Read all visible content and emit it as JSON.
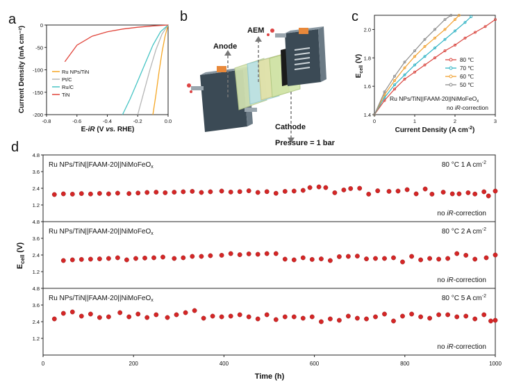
{
  "panel_letters": {
    "a": "a",
    "b": "b",
    "c": "c",
    "d": "d"
  },
  "colors": {
    "ru_tin": "#f5a623",
    "ptc": "#b5b5b5",
    "ruc": "#45c4c4",
    "tin": "#e0443a",
    "t80": "#d9453e",
    "t70": "#2fb3c4",
    "t60": "#f0a030",
    "t50": "#8c8c8c",
    "marker": "#d42626"
  },
  "schematic": {
    "anode_label": "Anode",
    "aem_label": "AEM",
    "cathode_label": "Cathode",
    "pressure_label": "Pressure = 1 bar",
    "icons": [
      "electrolyzer-end-plate-icon",
      "membrane-layers-icon",
      "flow-arrow-icon"
    ]
  },
  "chart_data": [
    {
      "id": "a",
      "type": "line",
      "xlabel": "E-iR (V vs. RHE)",
      "xlabel_parts": {
        "pre": "E-",
        "ital": "iR",
        "mid": " (V ",
        "vs.": "vs.",
        "post": " RHE)"
      },
      "ylabel": "Current Density (mA cm⁻²)",
      "xlim": [
        -0.8,
        0.0
      ],
      "ylim": [
        -200,
        0
      ],
      "xticks": [
        "-0.8",
        "-0.6",
        "-0.4",
        "-0.2",
        "0.0"
      ],
      "yticks": [
        "0",
        "-50",
        "-100",
        "-150",
        "-200"
      ],
      "legend_position": "bottom-left",
      "series": [
        {
          "name": "Ru NPs/TiN",
          "color_key": "ru_tin",
          "x": [
            0.0,
            -0.02,
            -0.04,
            -0.06,
            -0.08,
            -0.1
          ],
          "y": [
            0,
            -25,
            -60,
            -105,
            -155,
            -200
          ]
        },
        {
          "name": "Pt/C",
          "color_key": "ptc",
          "x": [
            0.0,
            -0.04,
            -0.08,
            -0.12,
            -0.16,
            -0.2
          ],
          "y": [
            0,
            -20,
            -55,
            -100,
            -150,
            -200
          ]
        },
        {
          "name": "Ru/C",
          "color_key": "ruc",
          "x": [
            0.0,
            -0.05,
            -0.1,
            -0.15,
            -0.2,
            -0.25,
            -0.3
          ],
          "y": [
            0,
            -15,
            -45,
            -85,
            -125,
            -165,
            -200
          ]
        },
        {
          "name": "TiN",
          "color_key": "tin",
          "x": [
            0.0,
            -0.1,
            -0.2,
            -0.3,
            -0.4,
            -0.5,
            -0.6,
            -0.68
          ],
          "y": [
            0,
            -2,
            -5,
            -9,
            -15,
            -25,
            -45,
            -82
          ]
        }
      ]
    },
    {
      "id": "c",
      "type": "line",
      "xlabel": "Current Density (A cm⁻²)",
      "ylabel": "Ecell (V)",
      "xlim": [
        0,
        3
      ],
      "ylim": [
        1.4,
        2.1
      ],
      "xticks": [
        "0",
        "1",
        "2",
        "3"
      ],
      "yticks": [
        "1.4",
        "1.6",
        "1.8",
        "2.0"
      ],
      "annotation": "Ru NPs/TiN||FAAM-20||NiMoFeOx",
      "note": "no iR-correction",
      "legend_position": "top-right",
      "series": [
        {
          "name": "80 ℃",
          "color_key": "t80",
          "x": [
            0,
            0.25,
            0.5,
            0.75,
            1.0,
            1.25,
            1.5,
            1.75,
            2.0,
            2.25,
            2.5,
            2.75,
            3.0
          ],
          "y": [
            1.4,
            1.5,
            1.58,
            1.65,
            1.7,
            1.75,
            1.8,
            1.85,
            1.89,
            1.94,
            1.98,
            2.02,
            2.07
          ]
        },
        {
          "name": "70 ℃",
          "color_key": "t70",
          "x": [
            0,
            0.25,
            0.5,
            0.75,
            1.0,
            1.25,
            1.5,
            1.75,
            2.0,
            2.25,
            2.4
          ],
          "y": [
            1.4,
            1.52,
            1.61,
            1.68,
            1.75,
            1.81,
            1.87,
            1.93,
            1.99,
            2.05,
            2.09
          ]
        },
        {
          "name": "60 ℃",
          "color_key": "t60",
          "x": [
            0,
            0.25,
            0.5,
            0.75,
            1.0,
            1.25,
            1.5,
            1.75,
            2.0,
            2.1
          ],
          "y": [
            1.4,
            1.54,
            1.64,
            1.73,
            1.81,
            1.88,
            1.94,
            2.0,
            2.07,
            2.1
          ]
        },
        {
          "name": "50 ℃",
          "color_key": "t50",
          "x": [
            0,
            0.25,
            0.5,
            0.75,
            1.0,
            1.25,
            1.5,
            1.75,
            1.9
          ],
          "y": [
            1.4,
            1.56,
            1.67,
            1.77,
            1.85,
            1.93,
            2.0,
            2.07,
            2.1
          ]
        }
      ]
    },
    {
      "id": "d",
      "type": "scatter",
      "xlabel": "Time (h)",
      "ylabel": "Ecell (V)",
      "xlim": [
        0,
        1000
      ],
      "xticks": [
        "0",
        "200",
        "400",
        "600",
        "800",
        "1000"
      ],
      "subplots": [
        {
          "label": "Ru NPs/TiN||FAAM-20||NiMoFeOx",
          "condition": "80 °C  1 A cm⁻²",
          "note": "no iR-correction",
          "ylim": [
            0,
            4.8
          ],
          "yticks": [
            "4.8",
            "3.6",
            "2.4",
            "1.2"
          ],
          "x": [
            25,
            45,
            65,
            85,
            105,
            125,
            145,
            165,
            190,
            210,
            230,
            250,
            270,
            290,
            310,
            330,
            350,
            370,
            395,
            415,
            435,
            455,
            475,
            495,
            515,
            535,
            555,
            575,
            590,
            610,
            625,
            645,
            665,
            680,
            700,
            720,
            740,
            765,
            785,
            805,
            825,
            845,
            860,
            885,
            905,
            920,
            940,
            955,
            975,
            985,
            1000
          ],
          "y": [
            1.95,
            2.0,
            1.98,
            2.02,
            1.99,
            2.03,
            2.0,
            2.05,
            2.02,
            2.06,
            2.1,
            2.12,
            2.08,
            2.12,
            2.15,
            2.18,
            2.1,
            2.15,
            2.2,
            2.13,
            2.16,
            2.22,
            2.1,
            2.16,
            2.04,
            2.18,
            2.2,
            2.25,
            2.45,
            2.5,
            2.45,
            2.08,
            2.28,
            2.38,
            2.4,
            1.98,
            2.22,
            2.18,
            2.2,
            2.3,
            2.0,
            2.35,
            1.98,
            2.12,
            2.0,
            2.0,
            2.08,
            1.99,
            2.15,
            1.85,
            2.2
          ]
        },
        {
          "label": "Ru NPs/TiN||FAAM-20||NiMoFeOx",
          "condition": "80 °C  2 A cm⁻²",
          "note": "no iR-correction",
          "ylim": [
            0,
            4.8
          ],
          "yticks": [
            "4.8",
            "3.6",
            "2.4",
            "1.2"
          ],
          "x": [
            45,
            65,
            85,
            105,
            125,
            145,
            165,
            185,
            205,
            225,
            245,
            265,
            290,
            310,
            330,
            350,
            370,
            395,
            415,
            435,
            455,
            475,
            495,
            515,
            535,
            555,
            575,
            595,
            615,
            635,
            655,
            675,
            695,
            715,
            735,
            755,
            775,
            795,
            815,
            835,
            855,
            875,
            895,
            915,
            935,
            955,
            980,
            1000
          ],
          "y": [
            2.0,
            2.05,
            2.08,
            2.1,
            2.12,
            2.15,
            2.2,
            2.05,
            2.15,
            2.18,
            2.2,
            2.25,
            2.15,
            2.2,
            2.3,
            2.3,
            2.35,
            2.38,
            2.5,
            2.42,
            2.48,
            2.45,
            2.5,
            2.5,
            2.1,
            2.05,
            2.2,
            2.08,
            2.12,
            2.0,
            2.28,
            2.3,
            2.32,
            2.12,
            2.15,
            2.15,
            2.2,
            1.9,
            2.3,
            2.05,
            2.15,
            2.1,
            2.15,
            2.5,
            2.38,
            2.1,
            2.2,
            2.4
          ]
        },
        {
          "label": "Ru NPs/TiN||FAAM-20||NiMoFeOx",
          "condition": "80 °C  5 A cm⁻²",
          "note": "no iR-correction",
          "ylim": [
            0,
            4.8
          ],
          "yticks": [
            "4.8",
            "3.6",
            "2.4",
            "1.2"
          ],
          "x": [
            25,
            45,
            65,
            85,
            105,
            125,
            145,
            170,
            190,
            210,
            230,
            250,
            275,
            295,
            315,
            335,
            355,
            375,
            395,
            415,
            435,
            455,
            475,
            495,
            515,
            535,
            555,
            575,
            595,
            615,
            635,
            655,
            675,
            695,
            715,
            735,
            755,
            775,
            795,
            815,
            835,
            855,
            875,
            895,
            915,
            935,
            955,
            975,
            990,
            1000
          ],
          "y": [
            2.6,
            3.0,
            3.1,
            2.8,
            2.95,
            2.7,
            2.75,
            3.05,
            2.75,
            2.95,
            2.7,
            2.9,
            2.7,
            2.9,
            3.05,
            3.2,
            2.65,
            2.8,
            2.75,
            2.8,
            2.9,
            2.75,
            2.6,
            2.9,
            2.55,
            2.75,
            2.75,
            2.65,
            2.75,
            2.4,
            2.6,
            2.5,
            2.8,
            2.65,
            2.6,
            2.75,
            2.95,
            2.45,
            2.8,
            2.95,
            2.75,
            2.65,
            2.9,
            2.9,
            2.75,
            2.8,
            2.6,
            2.9,
            2.45,
            2.5
          ]
        }
      ]
    }
  ]
}
